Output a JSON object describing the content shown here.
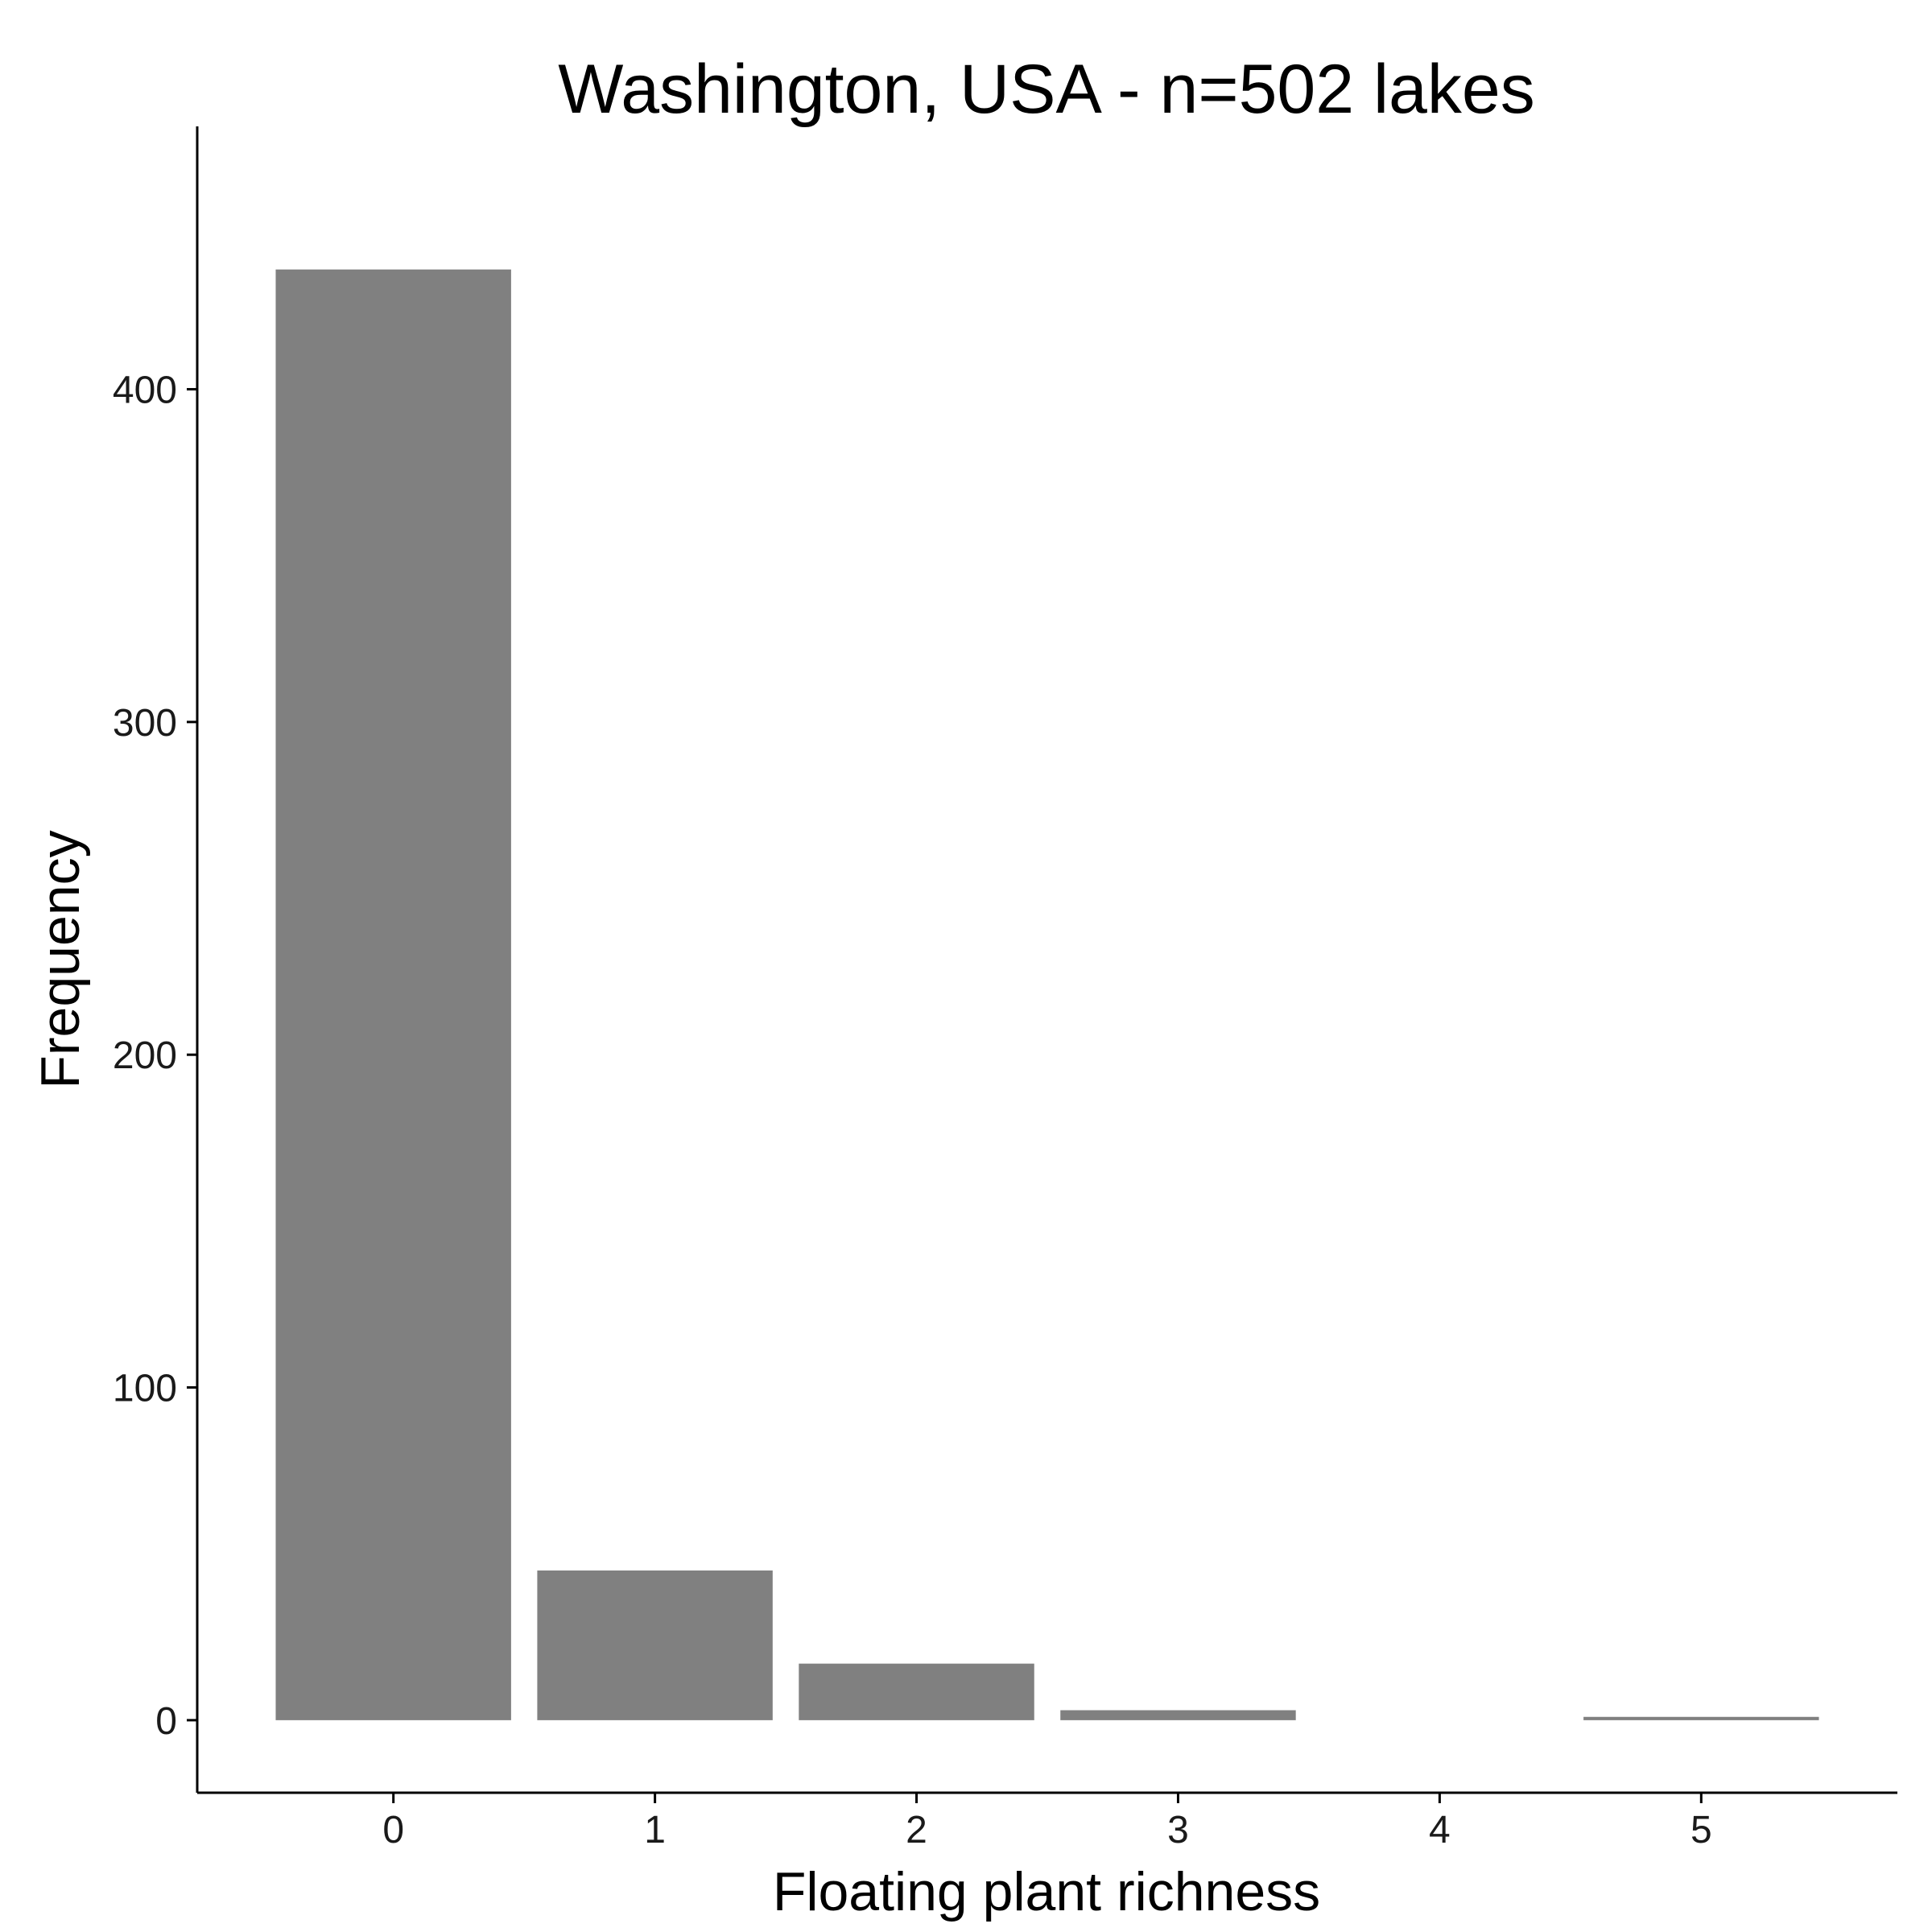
{
  "chart_data": {
    "type": "bar",
    "title": "Washington, USA - n=502 lakes",
    "xlabel": "Floating plant richness",
    "ylabel": "Frequency",
    "categories": [
      0,
      1,
      2,
      3,
      4,
      5
    ],
    "values": [
      436,
      45,
      17,
      3,
      0,
      1
    ],
    "yticks": [
      0,
      100,
      200,
      300,
      400
    ],
    "xticks": [
      0,
      1,
      2,
      3,
      4,
      5
    ],
    "ylim": [
      -21.8,
      479
    ],
    "xlim": [
      -0.75,
      5.75
    ],
    "bar_color": "#808080",
    "grid": false,
    "legend": "none"
  }
}
